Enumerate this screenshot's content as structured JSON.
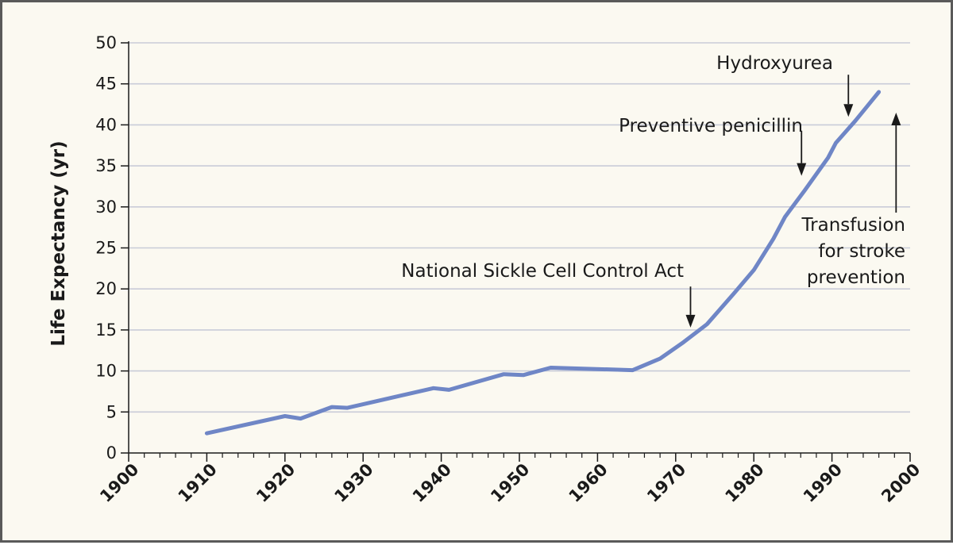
{
  "chart_data": {
    "type": "line",
    "title": "",
    "xlabel": "",
    "ylabel": "Life Expectancy (yr)",
    "xlim": [
      1900,
      2000
    ],
    "ylim": [
      0,
      50
    ],
    "grid": true,
    "line_color": "#6f86c6",
    "x_ticks": [
      "1900",
      "1910",
      "1920",
      "1930",
      "1940",
      "1950",
      "1960",
      "1970",
      "1980",
      "1990",
      "2000"
    ],
    "y_ticks": [
      "0",
      "5",
      "10",
      "15",
      "20",
      "25",
      "30",
      "35",
      "40",
      "45",
      "50"
    ],
    "series": [
      {
        "x": [
          1910,
          1920,
          1922,
          1926,
          1928,
          1939,
          1941,
          1948,
          1950.5,
          1954,
          1964.5,
          1968,
          1971,
          1974,
          1977.5,
          1980,
          1982.5,
          1984,
          1986.5,
          1989.5,
          1990.5,
          1993,
          1996
        ],
        "y": [
          2.4,
          4.5,
          4.2,
          5.6,
          5.5,
          7.9,
          7.7,
          9.6,
          9.5,
          10.4,
          10.1,
          11.5,
          13.5,
          15.7,
          19.5,
          22.3,
          26.1,
          28.8,
          32.0,
          36.0,
          37.8,
          40.5,
          44.0
        ]
      }
    ],
    "annotations": [
      {
        "text": "National Sickle Cell Control Act",
        "x": 1972,
        "arrow_from_y": 20,
        "arrow_to_y": 15,
        "direction": "down"
      },
      {
        "text": "Preventive penicillin",
        "x": 1986,
        "arrow_from_y": 39,
        "arrow_to_y": 33.5,
        "direction": "down"
      },
      {
        "text": "Hydroxyurea",
        "x": 1992,
        "arrow_from_y": 46.5,
        "arrow_to_y": 40.5,
        "direction": "down"
      },
      {
        "text_lines": [
          "Transfusion",
          "for stroke",
          "prevention"
        ],
        "x": 1998,
        "arrow_from_y": 29.5,
        "arrow_to_y": 41,
        "direction": "up"
      }
    ]
  }
}
